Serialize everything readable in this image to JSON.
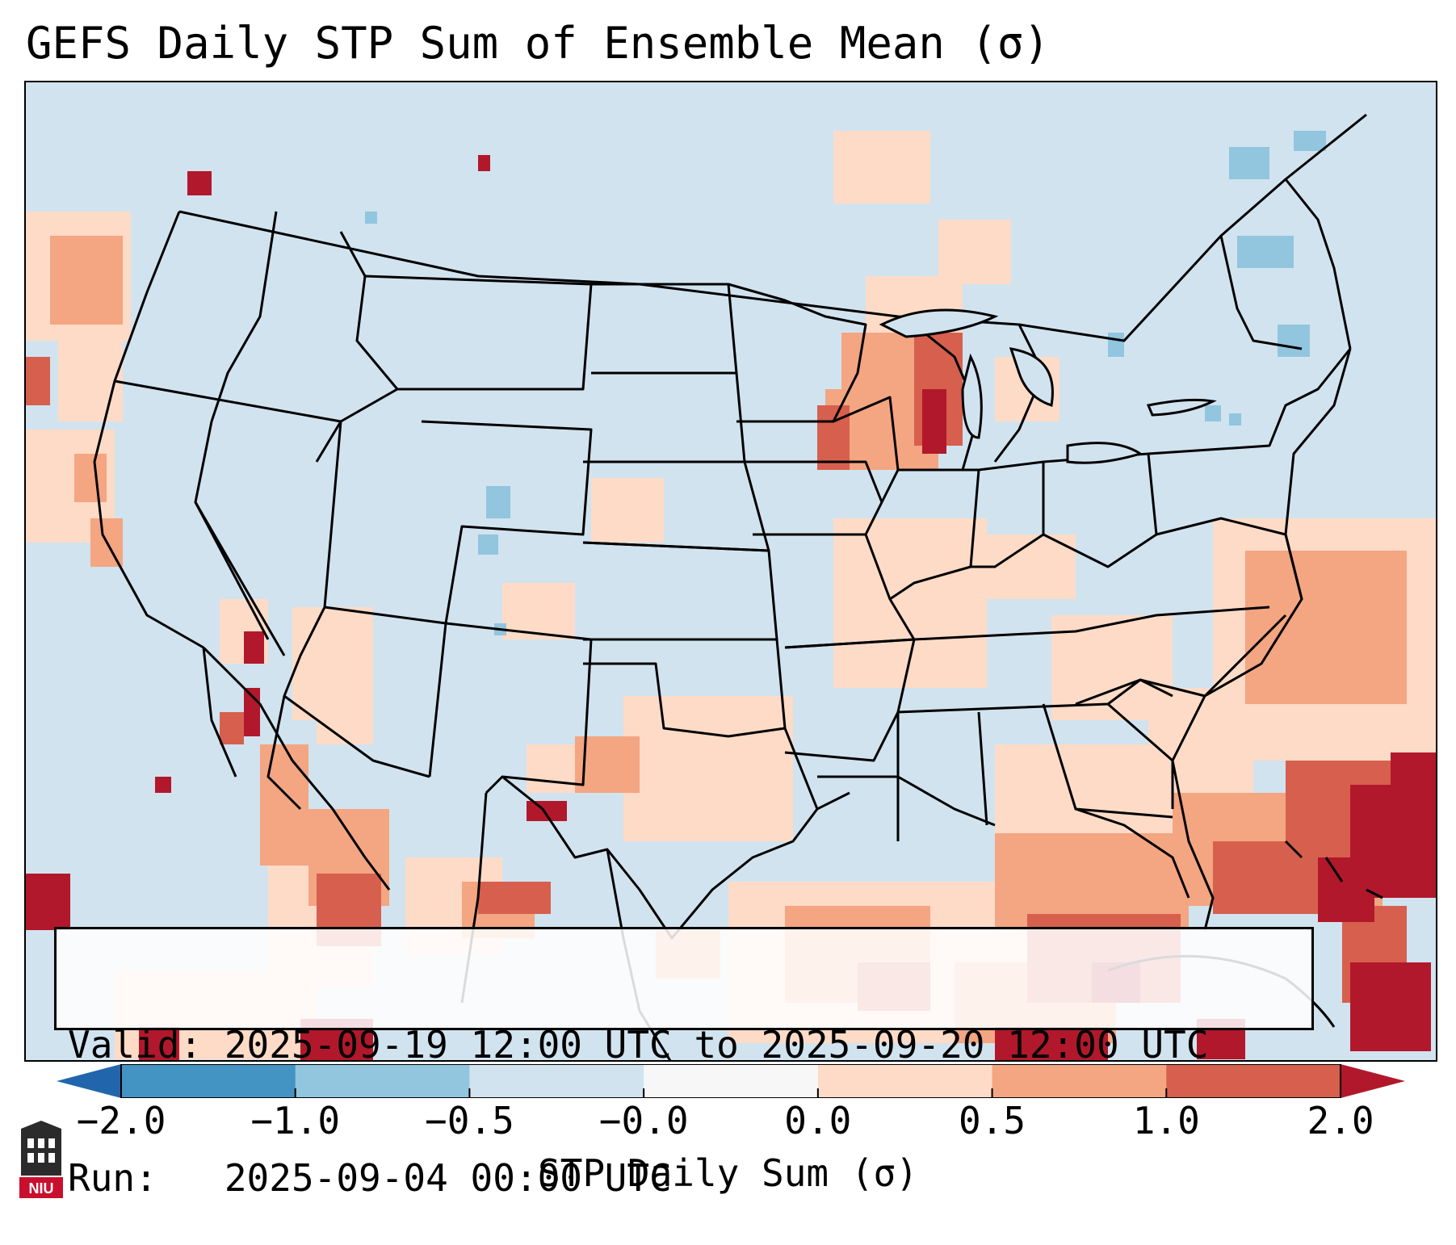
{
  "title": "GEFS Daily STP Sum of Ensemble Mean (σ)",
  "info": {
    "valid_line": "Valid: 2025-09-19 12:00 UTC to 2025-09-20 12:00 UTC",
    "run_line": "Run:   2025-09-04 00:00 UTC"
  },
  "colorbar": {
    "label": "STP Daily Sum (σ)",
    "ticks": [
      "−2.0",
      "−1.0",
      "−0.5",
      "−0.0",
      "0.0",
      "0.5",
      "1.0",
      "2.0"
    ],
    "bin_colors": [
      "#4393c3",
      "#92c5de",
      "#d1e3ef",
      "#f7f7f7",
      "#fddbc7",
      "#f4a582",
      "#d6604d"
    ],
    "under_color": "#2166ac",
    "over_color": "#b2182b"
  },
  "map": {
    "background_color": "#d1e3ef",
    "region": "Contiguous United States"
  },
  "logo": {
    "text": "NIU"
  }
}
